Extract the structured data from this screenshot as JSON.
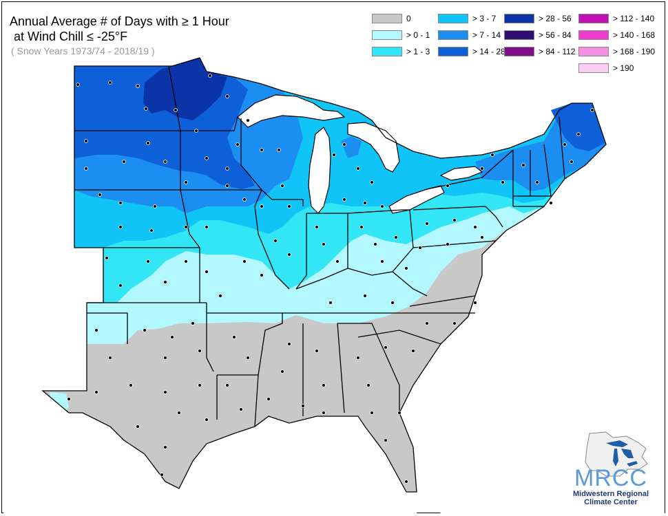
{
  "title": {
    "line1": "Annual Average # of Days with ≥ 1 Hour",
    "line2": "at Wind Chill ≤ -25°F"
  },
  "subtitle": "( Snow Years 1973/74 - 2018/19 )",
  "legend": [
    {
      "label": "0",
      "color": "#c8c8c8"
    },
    {
      "label": "> 0 - 1",
      "color": "#b3f7ff"
    },
    {
      "label": "> 1 - 3",
      "color": "#33e6f5"
    },
    {
      "label": "> 3 - 7",
      "color": "#11c4f7"
    },
    {
      "label": "> 7 - 14",
      "color": "#1c8ef2"
    },
    {
      "label": "> 14 - 28",
      "color": "#0e60d8"
    },
    {
      "label": "> 28 - 56",
      "color": "#0a34a8"
    },
    {
      "label": "> 56 - 84",
      "color": "#2d1070"
    },
    {
      "label": "> 84 - 112",
      "color": "#7d0f8a"
    },
    {
      "label": "> 112 - 140",
      "color": "#c20fb5"
    },
    {
      "label": "> 140 - 168",
      "color": "#f03cd0"
    },
    {
      "label": "> 168 - 190",
      "color": "#f58fe3"
    },
    {
      "label": "> 190",
      "color": "#fbcdf2"
    }
  ],
  "logo": {
    "name": "MRCC",
    "line1": "Midwestern Regional",
    "line2": "Climate Center"
  }
}
